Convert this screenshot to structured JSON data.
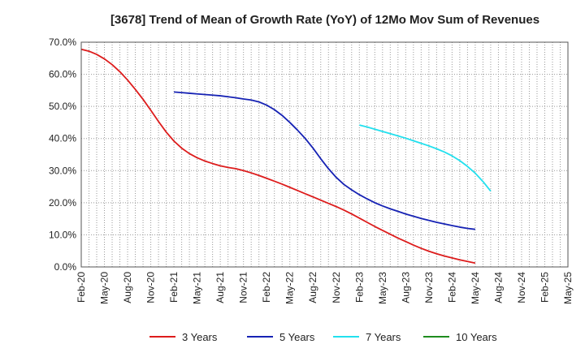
{
  "chart_data": {
    "type": "line",
    "title": "[3678]  Trend of Mean of Growth Rate (YoY) of 12Mo Mov Sum of Revenues",
    "xlabel": "",
    "ylabel": "",
    "ylim": [
      0,
      70
    ],
    "y_ticks": [
      "0.0%",
      "10.0%",
      "20.0%",
      "30.0%",
      "40.0%",
      "50.0%",
      "60.0%",
      "70.0%"
    ],
    "y_tick_values": [
      0,
      10,
      20,
      30,
      40,
      50,
      60,
      70
    ],
    "x_ticks": [
      "Feb-20",
      "May-20",
      "Aug-20",
      "Nov-20",
      "Feb-21",
      "May-21",
      "Aug-21",
      "Nov-21",
      "Feb-22",
      "May-22",
      "Aug-22",
      "Nov-22",
      "Feb-23",
      "May-23",
      "Aug-23",
      "Nov-23",
      "Feb-24",
      "May-24",
      "Aug-24",
      "Nov-24",
      "Feb-25",
      "May-25"
    ],
    "x_range_months": [
      0,
      63
    ],
    "grid": true,
    "legend_position": "bottom",
    "series": [
      {
        "name": "3 Years",
        "color": "#dd1c1c",
        "points": [
          [
            0,
            67.8
          ],
          [
            1,
            67.2
          ],
          [
            2,
            66.2
          ],
          [
            3,
            64.8
          ],
          [
            4,
            63.0
          ],
          [
            5,
            60.8
          ],
          [
            6,
            58.2
          ],
          [
            7,
            55.3
          ],
          [
            8,
            52.2
          ],
          [
            9,
            48.8
          ],
          [
            10,
            45.3
          ],
          [
            11,
            42.0
          ],
          [
            12,
            39.2
          ],
          [
            13,
            37.0
          ],
          [
            14,
            35.3
          ],
          [
            15,
            34.0
          ],
          [
            16,
            33.0
          ],
          [
            17,
            32.2
          ],
          [
            18,
            31.5
          ],
          [
            19,
            31.0
          ],
          [
            20,
            30.6
          ],
          [
            21,
            30.0
          ],
          [
            22,
            29.3
          ],
          [
            23,
            28.5
          ],
          [
            24,
            27.6
          ],
          [
            25,
            26.7
          ],
          [
            26,
            25.8
          ],
          [
            27,
            24.8
          ],
          [
            28,
            23.8
          ],
          [
            29,
            22.8
          ],
          [
            30,
            21.8
          ],
          [
            31,
            20.8
          ],
          [
            32,
            19.8
          ],
          [
            33,
            18.8
          ],
          [
            34,
            17.7
          ],
          [
            35,
            16.5
          ],
          [
            36,
            15.2
          ],
          [
            37,
            13.9
          ],
          [
            38,
            12.6
          ],
          [
            39,
            11.4
          ],
          [
            40,
            10.2
          ],
          [
            41,
            9.0
          ],
          [
            42,
            7.9
          ],
          [
            43,
            6.8
          ],
          [
            44,
            5.8
          ],
          [
            45,
            4.9
          ],
          [
            46,
            4.1
          ],
          [
            47,
            3.4
          ],
          [
            48,
            2.8
          ],
          [
            49,
            2.2
          ],
          [
            50,
            1.7
          ],
          [
            51,
            1.2
          ]
        ]
      },
      {
        "name": "5 Years",
        "color": "#1622b4",
        "points": [
          [
            12,
            54.5
          ],
          [
            13,
            54.3
          ],
          [
            14,
            54.1
          ],
          [
            15,
            53.9
          ],
          [
            16,
            53.7
          ],
          [
            17,
            53.5
          ],
          [
            18,
            53.3
          ],
          [
            19,
            53.0
          ],
          [
            20,
            52.7
          ],
          [
            21,
            52.3
          ],
          [
            22,
            52.0
          ],
          [
            23,
            51.4
          ],
          [
            24,
            50.4
          ],
          [
            25,
            49.0
          ],
          [
            26,
            47.2
          ],
          [
            27,
            45.0
          ],
          [
            28,
            42.6
          ],
          [
            29,
            40.0
          ],
          [
            30,
            37.0
          ],
          [
            31,
            33.7
          ],
          [
            32,
            30.6
          ],
          [
            33,
            27.9
          ],
          [
            34,
            25.7
          ],
          [
            35,
            24.0
          ],
          [
            36,
            22.5
          ],
          [
            37,
            21.2
          ],
          [
            38,
            20.0
          ],
          [
            39,
            19.0
          ],
          [
            40,
            18.1
          ],
          [
            41,
            17.3
          ],
          [
            42,
            16.5
          ],
          [
            43,
            15.8
          ],
          [
            44,
            15.1
          ],
          [
            45,
            14.5
          ],
          [
            46,
            13.9
          ],
          [
            47,
            13.4
          ],
          [
            48,
            12.9
          ],
          [
            49,
            12.4
          ],
          [
            50,
            12.0
          ],
          [
            51,
            11.7
          ]
        ]
      },
      {
        "name": "7 Years",
        "color": "#22e0ee",
        "points": [
          [
            36,
            44.2
          ],
          [
            37,
            43.6
          ],
          [
            38,
            42.9
          ],
          [
            39,
            42.2
          ],
          [
            40,
            41.5
          ],
          [
            41,
            40.8
          ],
          [
            42,
            40.1
          ],
          [
            43,
            39.3
          ],
          [
            44,
            38.5
          ],
          [
            45,
            37.7
          ],
          [
            46,
            36.8
          ],
          [
            47,
            35.8
          ],
          [
            48,
            34.6
          ],
          [
            49,
            33.1
          ],
          [
            50,
            31.3
          ],
          [
            51,
            29.2
          ],
          [
            52,
            26.6
          ],
          [
            53,
            23.6
          ]
        ]
      },
      {
        "name": "10 Years",
        "color": "#1e8c1e",
        "points": []
      }
    ]
  }
}
